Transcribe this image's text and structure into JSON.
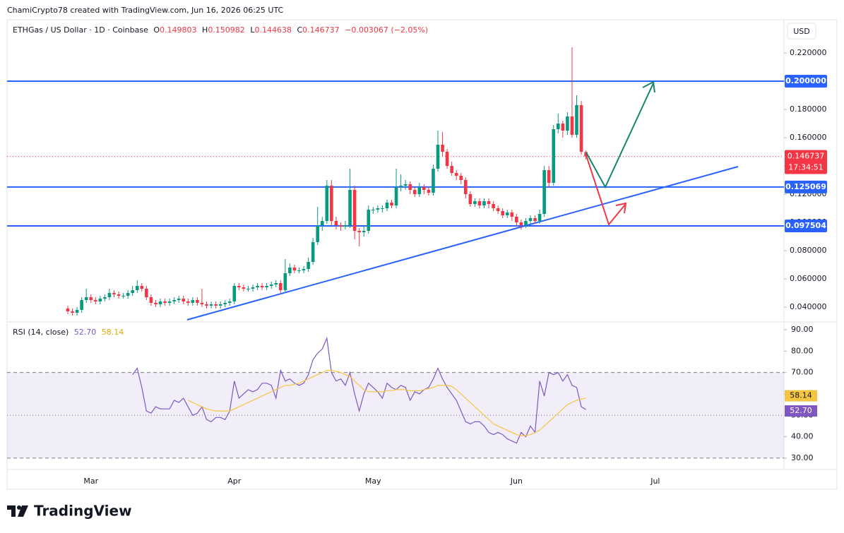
{
  "credit": "ChamiCrypto78 created with TradingView.com, Jun 16, 2026 06:25 UTC",
  "currency_button": "USD",
  "brand": "TradingView",
  "legend": {
    "symbol": "ETHGas / US Dollar · 1D · Coinbase",
    "o": "O",
    "h": "H",
    "l": "L",
    "c": "C",
    "change": "−0.003067 (−2.05%)"
  },
  "chart_data": [
    {
      "type": "candlestick",
      "categories": [
        null,
        null,
        null,
        null,
        null,
        "Mar",
        null,
        null,
        null,
        null,
        null,
        null,
        null,
        null,
        null,
        null,
        null,
        null,
        null,
        null,
        null,
        null,
        null,
        null,
        null,
        null,
        null,
        null,
        null,
        null,
        null,
        null,
        null,
        null,
        null,
        null,
        "Apr",
        null,
        null,
        null,
        null,
        null,
        null,
        null,
        null,
        null,
        null,
        null,
        null,
        null,
        null,
        null,
        null,
        null,
        null,
        null,
        null,
        null,
        null,
        null,
        null,
        null,
        null,
        null,
        null,
        null,
        "May",
        null,
        null,
        null,
        null,
        null,
        null,
        null,
        null,
        null,
        null,
        null,
        null,
        null,
        null,
        null,
        null,
        null,
        null,
        null,
        null,
        null,
        null,
        null,
        null,
        null,
        null,
        null,
        null,
        null,
        null,
        "Jun",
        null,
        null,
        null,
        null,
        null,
        null,
        null,
        null,
        null,
        null,
        null,
        null,
        null,
        null,
        null,
        null,
        null,
        null,
        null,
        null,
        null,
        null,
        null,
        null,
        null,
        null,
        null,
        null,
        null,
        "Jul"
      ],
      "open": [
        0.039,
        0.037,
        0.036,
        0.038,
        0.045,
        0.047,
        0.045,
        0.044,
        0.046,
        0.047,
        0.05,
        0.049,
        0.048,
        0.048,
        0.05,
        0.052,
        0.055,
        0.053,
        0.047,
        0.043,
        0.042,
        0.044,
        0.043,
        0.044,
        0.045,
        0.046,
        0.044,
        0.043,
        0.045,
        0.043,
        0.042,
        0.041,
        0.042,
        0.041,
        0.042,
        0.043,
        0.044,
        0.055,
        0.054,
        0.053,
        0.053,
        0.054,
        0.055,
        0.054,
        0.055,
        0.056,
        0.057,
        0.052,
        0.064,
        0.068,
        0.066,
        0.066,
        0.067,
        0.072,
        0.086,
        0.098,
        0.101,
        0.126,
        0.101,
        0.098,
        0.097,
        0.098,
        0.123,
        0.094,
        0.093,
        0.094,
        0.109,
        0.109,
        0.11,
        0.11,
        0.114,
        0.112,
        0.125,
        0.126,
        0.127,
        0.123,
        0.12,
        0.125,
        0.123,
        0.121,
        0.138,
        0.155,
        0.15,
        0.14,
        0.135,
        0.133,
        0.13,
        0.12,
        0.113,
        0.115,
        0.112,
        0.115,
        0.113,
        0.11,
        0.108,
        0.105,
        0.107,
        0.104,
        0.1,
        0.098,
        0.101,
        0.103,
        0.101,
        0.106,
        0.137,
        0.128,
        0.166,
        0.17,
        0.165,
        0.175,
        0.162,
        0.183,
        0.149803,
        null,
        null,
        null,
        null,
        null,
        null,
        null,
        null,
        null,
        null,
        null,
        null,
        null,
        null,
        null
      ],
      "high": [
        0.041,
        0.039,
        0.04,
        0.047,
        0.053,
        0.049,
        0.047,
        0.048,
        0.049,
        0.053,
        0.052,
        0.051,
        0.05,
        0.052,
        0.055,
        0.059,
        0.057,
        0.055,
        0.049,
        0.045,
        0.046,
        0.046,
        0.046,
        0.047,
        0.048,
        0.048,
        0.046,
        0.047,
        0.047,
        0.053,
        0.044,
        0.044,
        0.044,
        0.044,
        0.045,
        0.046,
        0.057,
        0.057,
        0.056,
        0.055,
        0.056,
        0.057,
        0.057,
        0.057,
        0.058,
        0.059,
        0.059,
        0.074,
        0.071,
        0.07,
        0.068,
        0.069,
        0.075,
        0.089,
        0.111,
        0.104,
        0.13,
        0.13,
        0.104,
        0.1,
        0.101,
        0.138,
        0.126,
        0.096,
        0.097,
        0.112,
        0.111,
        0.112,
        0.112,
        0.116,
        0.116,
        0.138,
        0.134,
        0.13,
        0.129,
        0.125,
        0.128,
        0.127,
        0.125,
        0.141,
        0.165,
        0.164,
        0.152,
        0.143,
        0.137,
        0.135,
        0.132,
        0.122,
        0.117,
        0.117,
        0.117,
        0.117,
        0.115,
        0.112,
        0.11,
        0.109,
        0.109,
        0.106,
        0.102,
        0.103,
        0.105,
        0.105,
        0.109,
        0.14,
        0.14,
        0.169,
        0.177,
        0.172,
        0.178,
        0.224,
        0.19,
        0.186,
        0.150982,
        null,
        null,
        null,
        null,
        null,
        null,
        null,
        null,
        null,
        null,
        null,
        null,
        null,
        null,
        null
      ],
      "low": [
        0.035,
        0.034,
        0.034,
        0.036,
        0.043,
        0.043,
        0.042,
        0.042,
        0.044,
        0.045,
        0.047,
        0.046,
        0.046,
        0.046,
        0.048,
        0.05,
        0.051,
        0.045,
        0.041,
        0.04,
        0.04,
        0.041,
        0.041,
        0.042,
        0.043,
        0.042,
        0.041,
        0.041,
        0.041,
        0.04,
        0.039,
        0.039,
        0.039,
        0.039,
        0.04,
        0.041,
        0.042,
        0.052,
        0.051,
        0.051,
        0.051,
        0.052,
        0.052,
        0.052,
        0.053,
        0.054,
        0.05,
        0.05,
        0.062,
        0.064,
        0.064,
        0.064,
        0.065,
        0.07,
        0.084,
        0.094,
        0.099,
        0.098,
        0.095,
        0.094,
        0.095,
        0.096,
        0.088,
        0.083,
        0.09,
        0.092,
        0.106,
        0.107,
        0.107,
        0.108,
        0.11,
        0.11,
        0.122,
        0.123,
        0.12,
        0.118,
        0.118,
        0.12,
        0.119,
        0.119,
        0.136,
        0.147,
        0.138,
        0.133,
        0.13,
        0.127,
        0.117,
        0.111,
        0.111,
        0.11,
        0.11,
        0.11,
        0.108,
        0.106,
        0.103,
        0.103,
        0.101,
        0.097,
        0.095,
        0.096,
        0.099,
        0.099,
        0.099,
        0.104,
        0.125,
        0.126,
        0.163,
        0.16,
        0.162,
        0.16,
        0.16,
        0.148,
        0.144638,
        null,
        null,
        null,
        null,
        null,
        null,
        null,
        null,
        null,
        null,
        null,
        null,
        null,
        null,
        null
      ],
      "close": [
        0.037,
        0.036,
        0.038,
        0.045,
        0.047,
        0.045,
        0.044,
        0.046,
        0.047,
        0.05,
        0.049,
        0.048,
        0.048,
        0.05,
        0.052,
        0.055,
        0.053,
        0.047,
        0.043,
        0.042,
        0.044,
        0.043,
        0.044,
        0.045,
        0.046,
        0.044,
        0.043,
        0.045,
        0.043,
        0.042,
        0.041,
        0.042,
        0.041,
        0.042,
        0.043,
        0.044,
        0.055,
        0.054,
        0.053,
        0.053,
        0.054,
        0.055,
        0.054,
        0.055,
        0.056,
        0.057,
        0.052,
        0.064,
        0.068,
        0.066,
        0.066,
        0.067,
        0.072,
        0.086,
        0.098,
        0.101,
        0.126,
        0.101,
        0.098,
        0.097,
        0.098,
        0.123,
        0.094,
        0.093,
        0.094,
        0.109,
        0.109,
        0.11,
        0.11,
        0.114,
        0.112,
        0.125,
        0.126,
        0.127,
        0.123,
        0.12,
        0.125,
        0.123,
        0.121,
        0.138,
        0.155,
        0.15,
        0.14,
        0.135,
        0.133,
        0.13,
        0.12,
        0.113,
        0.115,
        0.112,
        0.115,
        0.113,
        0.11,
        0.108,
        0.105,
        0.107,
        0.104,
        0.1,
        0.098,
        0.101,
        0.103,
        0.101,
        0.106,
        0.137,
        0.128,
        0.166,
        0.17,
        0.165,
        0.175,
        0.162,
        0.183,
        0.15,
        0.146737,
        null,
        null,
        null,
        null,
        null,
        null,
        null,
        null,
        null,
        null,
        null,
        null,
        null,
        null,
        null
      ],
      "up_color": "#089981",
      "down_color": "#f23645",
      "ylim": [
        0.03,
        0.2425
      ],
      "yticks": [
        {
          "value": 0.04,
          "label": "0.040000"
        },
        {
          "value": 0.06,
          "label": "0.060000"
        },
        {
          "value": 0.08,
          "label": "0.080000"
        },
        {
          "value": 0.1,
          "label": "0.100000"
        },
        {
          "value": 0.12,
          "label": "0.120000"
        },
        {
          "value": 0.14,
          "label": "0.140000"
        },
        {
          "value": 0.16,
          "label": "0.160000"
        },
        {
          "value": 0.18,
          "label": "0.180000"
        },
        {
          "value": 0.2,
          "label": "0.200000"
        },
        {
          "value": 0.22,
          "label": "0.220000"
        }
      ],
      "levels": [
        {
          "value": 0.2,
          "label": "0.200000"
        },
        0.125069,
        0.097504
      ],
      "level_color": "#2962ff",
      "countdown": "17:34:51"
    },
    {
      "type": "line",
      "series": [
        {
          "name": "RSI (14, close)",
          "color": "#7e57c2",
          "value_label": "52.70",
          "values": [
            null,
            null,
            null,
            null,
            null,
            null,
            null,
            null,
            null,
            null,
            null,
            null,
            null,
            null,
            69,
            72,
            63,
            52,
            51,
            54,
            53,
            53,
            53,
            57,
            56,
            58,
            54,
            50,
            51,
            54,
            48,
            47,
            49,
            49,
            48,
            52,
            66,
            58,
            60,
            62,
            61,
            62,
            65,
            65,
            64,
            58,
            71,
            66,
            67,
            65,
            64,
            65,
            69,
            76,
            79,
            81,
            86,
            70,
            66,
            67,
            64,
            70,
            60,
            52,
            60,
            65,
            63,
            61,
            58,
            65,
            63,
            62,
            64,
            63,
            57,
            61,
            60,
            62,
            63,
            67,
            72,
            67,
            63,
            60,
            57,
            52,
            47,
            46,
            47,
            47,
            45,
            42,
            41,
            42,
            41,
            39,
            38,
            37,
            42,
            40,
            45,
            42,
            66,
            59,
            70,
            69,
            70,
            66,
            69,
            64,
            63,
            54,
            52.7,
            null,
            null,
            null,
            null,
            null,
            null,
            null,
            null,
            null,
            null,
            null,
            null,
            null,
            null,
            null
          ]
        },
        {
          "color": "#f5c542",
          "values": [
            null,
            null,
            null,
            null,
            null,
            null,
            null,
            null,
            null,
            null,
            null,
            null,
            null,
            null,
            null,
            null,
            null,
            null,
            null,
            null,
            null,
            null,
            null,
            null,
            null,
            null,
            57,
            56,
            55,
            54,
            53,
            52.5,
            52,
            52,
            52,
            52,
            53,
            54,
            55,
            56,
            57,
            58,
            59,
            60,
            61,
            62,
            63,
            64,
            64,
            64.5,
            65,
            66,
            67,
            68,
            69,
            70,
            71,
            71,
            70.5,
            70,
            69,
            68,
            66,
            64,
            62,
            61,
            61,
            61,
            61,
            61.5,
            61.5,
            62,
            62,
            62,
            61.5,
            61.5,
            61.5,
            62,
            62.5,
            63,
            64,
            64,
            64,
            63.5,
            62,
            60,
            58,
            56,
            54,
            52,
            50,
            48,
            46,
            45,
            44,
            43,
            42,
            41,
            40.5,
            40.5,
            41,
            42,
            43,
            45,
            47,
            49,
            51,
            53,
            55,
            56,
            57,
            57.5,
            58.14,
            null,
            null,
            null,
            null,
            null,
            null,
            null,
            null,
            null,
            null,
            null,
            null,
            null,
            null,
            null
          ]
        }
      ],
      "ylim": [
        24.7,
        93.3
      ],
      "yticks": [
        {
          "value": 30,
          "label": "30.00"
        },
        {
          "value": 40,
          "label": "40.00"
        },
        {
          "value": 50,
          "label": "50.00"
        },
        {
          "value": 60,
          "label": "60.00"
        },
        {
          "value": 70,
          "label": "70.00"
        },
        {
          "value": 80,
          "label": "80.00"
        },
        {
          "value": 90,
          "label": "90.00"
        }
      ],
      "band": [
        30,
        70
      ],
      "midline": 50
    }
  ]
}
